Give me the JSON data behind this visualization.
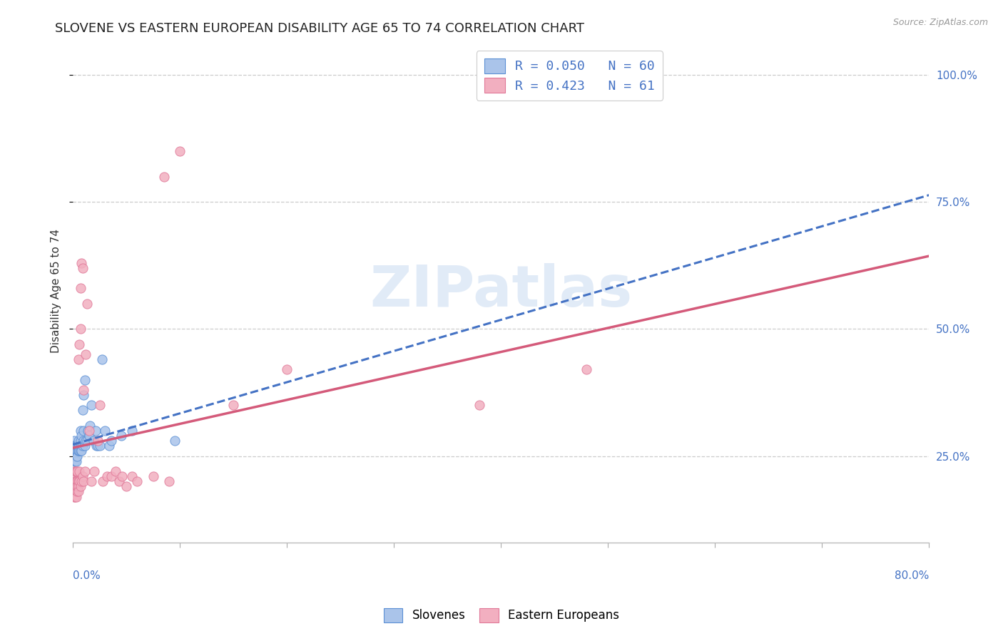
{
  "title": "SLOVENE VS EASTERN EUROPEAN DISABILITY AGE 65 TO 74 CORRELATION CHART",
  "source": "Source: ZipAtlas.com",
  "ylabel": "Disability Age 65 to 74",
  "ytick_values": [
    0.25,
    0.5,
    0.75,
    1.0
  ],
  "xmin": 0.0,
  "xmax": 0.8,
  "ymin": 0.08,
  "ymax": 1.07,
  "legend1_label": "R = 0.050   N = 60",
  "legend2_label": "R = 0.423   N = 61",
  "series1_color": "#aac4ea",
  "series1_edge": "#5b8fd4",
  "series1_line_color": "#4472c4",
  "series2_color": "#f2afc0",
  "series2_edge": "#e07898",
  "series2_line_color": "#d45a7a",
  "watermark": "ZIPatlas",
  "background_color": "#ffffff",
  "grid_color": "#cccccc",
  "title_fontsize": 13,
  "axis_fontsize": 11,
  "tick_fontsize": 11,
  "slovenes_x": [
    0.001,
    0.001,
    0.001,
    0.001,
    0.001,
    0.002,
    0.002,
    0.002,
    0.002,
    0.002,
    0.002,
    0.003,
    0.003,
    0.003,
    0.003,
    0.003,
    0.003,
    0.004,
    0.004,
    0.004,
    0.004,
    0.005,
    0.005,
    0.005,
    0.005,
    0.006,
    0.006,
    0.006,
    0.007,
    0.007,
    0.007,
    0.007,
    0.008,
    0.008,
    0.008,
    0.009,
    0.009,
    0.01,
    0.01,
    0.01,
    0.011,
    0.011,
    0.012,
    0.013,
    0.014,
    0.015,
    0.016,
    0.017,
    0.019,
    0.021,
    0.022,
    0.023,
    0.025,
    0.027,
    0.03,
    0.034,
    0.036,
    0.045,
    0.055,
    0.095
  ],
  "slovenes_y": [
    0.27,
    0.26,
    0.25,
    0.28,
    0.24,
    0.25,
    0.26,
    0.27,
    0.26,
    0.24,
    0.25,
    0.25,
    0.26,
    0.25,
    0.26,
    0.27,
    0.24,
    0.27,
    0.26,
    0.27,
    0.25,
    0.27,
    0.26,
    0.28,
    0.26,
    0.27,
    0.27,
    0.26,
    0.28,
    0.27,
    0.3,
    0.26,
    0.27,
    0.29,
    0.26,
    0.34,
    0.27,
    0.28,
    0.37,
    0.3,
    0.27,
    0.4,
    0.28,
    0.28,
    0.3,
    0.29,
    0.31,
    0.35,
    0.28,
    0.3,
    0.27,
    0.27,
    0.27,
    0.44,
    0.3,
    0.27,
    0.28,
    0.29,
    0.3,
    0.28
  ],
  "eastern_x": [
    0.001,
    0.001,
    0.001,
    0.001,
    0.001,
    0.002,
    0.002,
    0.002,
    0.002,
    0.002,
    0.002,
    0.003,
    0.003,
    0.003,
    0.003,
    0.003,
    0.004,
    0.004,
    0.004,
    0.004,
    0.005,
    0.005,
    0.005,
    0.005,
    0.006,
    0.006,
    0.006,
    0.007,
    0.007,
    0.007,
    0.008,
    0.008,
    0.009,
    0.009,
    0.01,
    0.01,
    0.011,
    0.012,
    0.013,
    0.015,
    0.017,
    0.02,
    0.023,
    0.025,
    0.028,
    0.032,
    0.036,
    0.04,
    0.043,
    0.046,
    0.05,
    0.055,
    0.06,
    0.075,
    0.085,
    0.09,
    0.1,
    0.15,
    0.2,
    0.38,
    0.48
  ],
  "eastern_y": [
    0.22,
    0.2,
    0.19,
    0.18,
    0.17,
    0.19,
    0.18,
    0.2,
    0.17,
    0.19,
    0.22,
    0.2,
    0.19,
    0.18,
    0.17,
    0.22,
    0.18,
    0.2,
    0.19,
    0.22,
    0.2,
    0.19,
    0.18,
    0.44,
    0.2,
    0.47,
    0.22,
    0.19,
    0.5,
    0.58,
    0.2,
    0.63,
    0.62,
    0.21,
    0.2,
    0.38,
    0.22,
    0.45,
    0.55,
    0.3,
    0.2,
    0.22,
    0.28,
    0.35,
    0.2,
    0.21,
    0.21,
    0.22,
    0.2,
    0.21,
    0.19,
    0.21,
    0.2,
    0.21,
    0.8,
    0.2,
    0.85,
    0.35,
    0.42,
    0.35,
    0.42
  ]
}
